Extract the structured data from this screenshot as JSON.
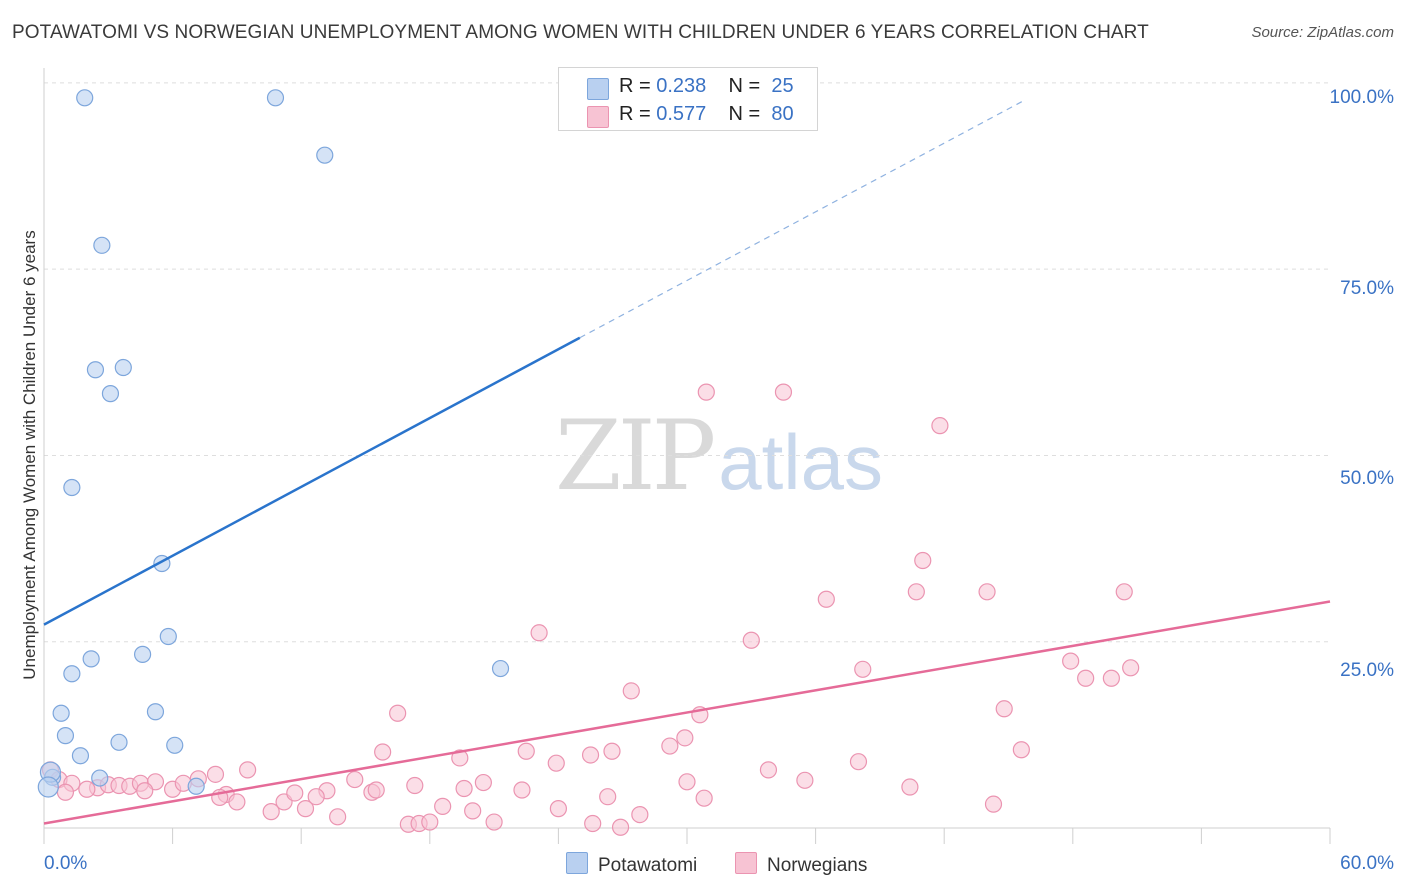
{
  "title": "POTAWATOMI VS NORWEGIAN UNEMPLOYMENT AMONG WOMEN WITH CHILDREN UNDER 6 YEARS CORRELATION CHART",
  "source": "Source: ZipAtlas.com",
  "watermark": {
    "zip": "ZIP",
    "atlas": "atlas"
  },
  "legend": {
    "potawatomi": {
      "r_label": "R = ",
      "r_value": "0.238",
      "n_label": "N = ",
      "n_value": "25"
    },
    "norwegians": {
      "r_label": "R = ",
      "r_value": "0.577",
      "n_label": "N = ",
      "n_value": "80"
    }
  },
  "bottom_legend": {
    "potawatomi": "Potawatomi",
    "norwegians": "Norwegians"
  },
  "colors": {
    "blue_fill": "#b9d0f0",
    "blue_stroke": "#7da6dc",
    "blue_line": "#2a74cc",
    "pink_fill": "#f7c3d3",
    "pink_stroke": "#eb94b1",
    "pink_line": "#e56b98",
    "grid": "#dedede",
    "axis_text": "#3a72c4"
  },
  "chart_data": {
    "type": "scatter",
    "title": "POTAWATOMI VS NORWEGIAN UNEMPLOYMENT AMONG WOMEN WITH CHILDREN UNDER 6 YEARS CORRELATION CHART",
    "xlabel": "",
    "ylabel": "Unemployment Among Women with Children Under 6 years",
    "xlim": [
      0,
      60
    ],
    "ylim": [
      0,
      102
    ],
    "x_tick_labels": [
      "0.0%",
      "60.0%"
    ],
    "y_ticks": [
      25,
      50,
      75,
      100
    ],
    "y_tick_labels": [
      "25.0%",
      "50.0%",
      "75.0%",
      "100.0%"
    ],
    "grid": true,
    "series": [
      {
        "name": "Potawatomi",
        "r": 0.238,
        "n": 25,
        "trend": {
          "x0": 0,
          "y0": 27.3,
          "x1": 25.0,
          "y1": 65.8,
          "dashed_to_x": 45.7,
          "dashed_to_y": 97.6
        },
        "points": [
          [
            1.9,
            98
          ],
          [
            10.8,
            98
          ],
          [
            13.1,
            90.3
          ],
          [
            2.7,
            78.2
          ],
          [
            2.4,
            61.5
          ],
          [
            3.7,
            61.8
          ],
          [
            3.1,
            58.3
          ],
          [
            1.3,
            45.7
          ],
          [
            5.5,
            35.5
          ],
          [
            5.8,
            25.7
          ],
          [
            2.2,
            22.7
          ],
          [
            4.6,
            23.3
          ],
          [
            1.3,
            20.7
          ],
          [
            0.8,
            15.4
          ],
          [
            1.0,
            12.4
          ],
          [
            5.2,
            15.6
          ],
          [
            3.5,
            11.5
          ],
          [
            6.1,
            11.1
          ],
          [
            1.7,
            9.7
          ],
          [
            0.4,
            6.8
          ],
          [
            2.6,
            6.7
          ],
          [
            7.1,
            5.6
          ],
          [
            21.3,
            21.4
          ],
          [
            0.3,
            7.5
          ],
          [
            0.2,
            5.5
          ]
        ]
      },
      {
        "name": "Norwegians",
        "r": 0.577,
        "n": 80,
        "trend": {
          "x0": 0,
          "y0": 0.6,
          "x1": 60,
          "y1": 30.4
        },
        "points": [
          [
            0.3,
            7.8
          ],
          [
            0.7,
            6.5
          ],
          [
            1.3,
            6.0
          ],
          [
            2.5,
            5.4
          ],
          [
            3.0,
            5.8
          ],
          [
            3.5,
            5.7
          ],
          [
            4.0,
            5.6
          ],
          [
            4.5,
            6.0
          ],
          [
            5.2,
            6.2
          ],
          [
            6.0,
            5.2
          ],
          [
            6.5,
            6.0
          ],
          [
            7.2,
            6.6
          ],
          [
            8.0,
            7.2
          ],
          [
            8.5,
            4.5
          ],
          [
            9.5,
            7.8
          ],
          [
            10.6,
            2.2
          ],
          [
            11.2,
            3.5
          ],
          [
            12.2,
            2.6
          ],
          [
            13.7,
            1.5
          ],
          [
            13.2,
            5.0
          ],
          [
            14.5,
            6.5
          ],
          [
            15.3,
            4.8
          ],
          [
            15.5,
            5.1
          ],
          [
            15.8,
            10.2
          ],
          [
            17.0,
            0.5
          ],
          [
            16.5,
            15.4
          ],
          [
            17.5,
            0.6
          ],
          [
            18.0,
            0.8
          ],
          [
            18.6,
            2.9
          ],
          [
            19.4,
            9.4
          ],
          [
            19.6,
            5.3
          ],
          [
            20.5,
            6.1
          ],
          [
            21.0,
            0.8
          ],
          [
            22.3,
            5.1
          ],
          [
            22.5,
            10.3
          ],
          [
            23.1,
            26.2
          ],
          [
            23.9,
            8.7
          ],
          [
            24.0,
            2.6
          ],
          [
            25.5,
            9.8
          ],
          [
            26.3,
            4.2
          ],
          [
            26.5,
            10.3
          ],
          [
            25.6,
            0.6
          ],
          [
            26.9,
            0.1
          ],
          [
            27.4,
            18.4
          ],
          [
            27.8,
            1.8
          ],
          [
            29.2,
            11.0
          ],
          [
            29.9,
            12.1
          ],
          [
            30.6,
            15.2
          ],
          [
            30.0,
            6.2
          ],
          [
            30.9,
            58.5
          ],
          [
            30.8,
            4.0
          ],
          [
            34.5,
            58.5
          ],
          [
            33.8,
            7.8
          ],
          [
            33.0,
            25.2
          ],
          [
            35.5,
            6.4
          ],
          [
            36.5,
            30.7
          ],
          [
            38.2,
            21.3
          ],
          [
            38.0,
            8.9
          ],
          [
            40.4,
            5.5
          ],
          [
            40.7,
            31.7
          ],
          [
            41.0,
            35.9
          ],
          [
            41.8,
            54.0
          ],
          [
            44.0,
            31.7
          ],
          [
            44.8,
            16.0
          ],
          [
            45.6,
            10.5
          ],
          [
            47.9,
            22.4
          ],
          [
            48.6,
            20.1
          ],
          [
            49.8,
            20.1
          ],
          [
            50.7,
            21.5
          ],
          [
            50.4,
            31.7
          ],
          [
            44.3,
            3.2
          ],
          [
            1.0,
            4.8
          ],
          [
            2.0,
            5.2
          ],
          [
            4.7,
            5.0
          ],
          [
            8.2,
            4.1
          ],
          [
            9.0,
            3.5
          ],
          [
            11.7,
            4.7
          ],
          [
            12.7,
            4.2
          ],
          [
            17.3,
            5.7
          ],
          [
            20.0,
            2.3
          ]
        ]
      }
    ]
  }
}
